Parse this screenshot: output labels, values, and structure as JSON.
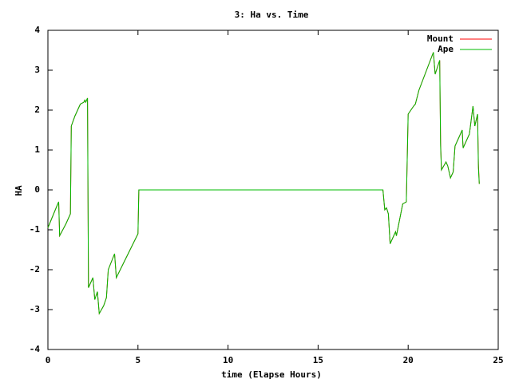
{
  "chart_data": {
    "type": "line",
    "title": "3: Ha vs. Time",
    "xlabel": "time (Elapse Hours)",
    "ylabel": "HA",
    "xlim": [
      0,
      25
    ],
    "xticks": [
      0,
      5,
      10,
      15,
      20,
      25
    ],
    "ylim": [
      -4,
      4
    ],
    "yticks": [
      -4,
      -3,
      -2,
      -1,
      0,
      1,
      2,
      3,
      4
    ],
    "legend": "top-right",
    "x": [
      0,
      0.5,
      0.6,
      0.65,
      1.0,
      1.25,
      1.3,
      1.5,
      1.8,
      2.0,
      2.05,
      2.1,
      2.2,
      2.25,
      2.5,
      2.6,
      2.75,
      2.85,
      3.1,
      3.25,
      3.35,
      3.7,
      3.8,
      5.0,
      5.05,
      18.6,
      18.7,
      18.8,
      18.9,
      19.0,
      19.3,
      19.35,
      19.7,
      19.9,
      20.0,
      20.3,
      20.4,
      20.6,
      21.4,
      21.5,
      21.75,
      21.8,
      21.85,
      22.1,
      22.2,
      22.35,
      22.5,
      22.6,
      23.0,
      23.05,
      23.4,
      23.6,
      23.7,
      23.85,
      23.9,
      23.95
    ],
    "series": [
      {
        "name": "Mount",
        "color": "#ff0000",
        "values": [
          -0.95,
          -0.4,
          -0.3,
          -1.15,
          -0.85,
          -0.6,
          1.6,
          1.85,
          2.15,
          2.2,
          2.25,
          2.2,
          2.3,
          -2.45,
          -2.2,
          -2.75,
          -2.55,
          -3.1,
          -2.9,
          -2.7,
          -2.0,
          -1.6,
          -2.2,
          -1.1,
          0,
          0,
          -0.5,
          -0.45,
          -0.6,
          -1.35,
          -1.05,
          -1.15,
          -0.35,
          -0.3,
          1.9,
          2.1,
          2.15,
          2.5,
          3.45,
          2.9,
          3.25,
          1.2,
          0.5,
          0.7,
          0.6,
          0.3,
          0.45,
          1.1,
          1.5,
          1.05,
          1.4,
          2.1,
          1.6,
          1.9,
          0.65,
          0.15
        ]
      },
      {
        "name": "Ape",
        "color": "#00bb00",
        "values": [
          -0.95,
          -0.4,
          -0.3,
          -1.15,
          -0.85,
          -0.6,
          1.6,
          1.85,
          2.15,
          2.2,
          2.25,
          2.2,
          2.3,
          -2.45,
          -2.2,
          -2.75,
          -2.55,
          -3.1,
          -2.9,
          -2.7,
          -2.0,
          -1.6,
          -2.2,
          -1.1,
          0,
          0,
          -0.5,
          -0.45,
          -0.6,
          -1.35,
          -1.05,
          -1.15,
          -0.35,
          -0.3,
          1.9,
          2.1,
          2.15,
          2.5,
          3.45,
          2.9,
          3.25,
          1.1,
          0.5,
          0.7,
          0.6,
          0.3,
          0.45,
          1.1,
          1.5,
          1.05,
          1.4,
          2.1,
          1.6,
          1.9,
          0.55,
          0.15
        ]
      }
    ]
  }
}
